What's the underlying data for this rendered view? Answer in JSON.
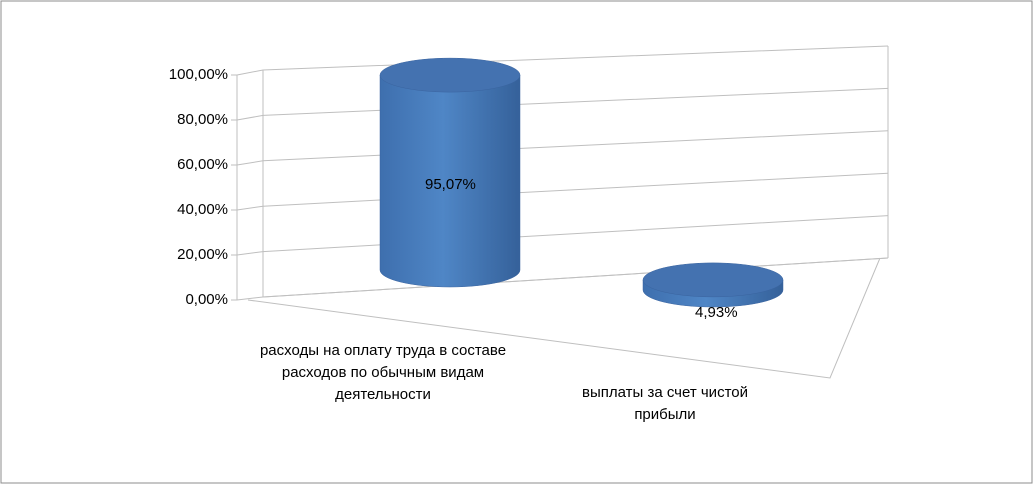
{
  "chart_data": {
    "type": "bar3d",
    "categories": [
      "расходы на оплату труда в составе расходов по обычным видам деятельности",
      "выплаты за счет чистой прибыли"
    ],
    "values": [
      95.07,
      4.93
    ],
    "value_labels": [
      "95,07%",
      "4,93%"
    ],
    "color": "#4a7ebb",
    "ylim": [
      0,
      100
    ],
    "yticks": [
      {
        "value": 0,
        "label": "0,00%"
      },
      {
        "value": 20,
        "label": "20,00%"
      },
      {
        "value": 40,
        "label": "40,00%"
      },
      {
        "value": 60,
        "label": "60,00%"
      },
      {
        "value": 80,
        "label": "80,00%"
      },
      {
        "value": 100,
        "label": "100,00%"
      }
    ],
    "grid": true
  }
}
